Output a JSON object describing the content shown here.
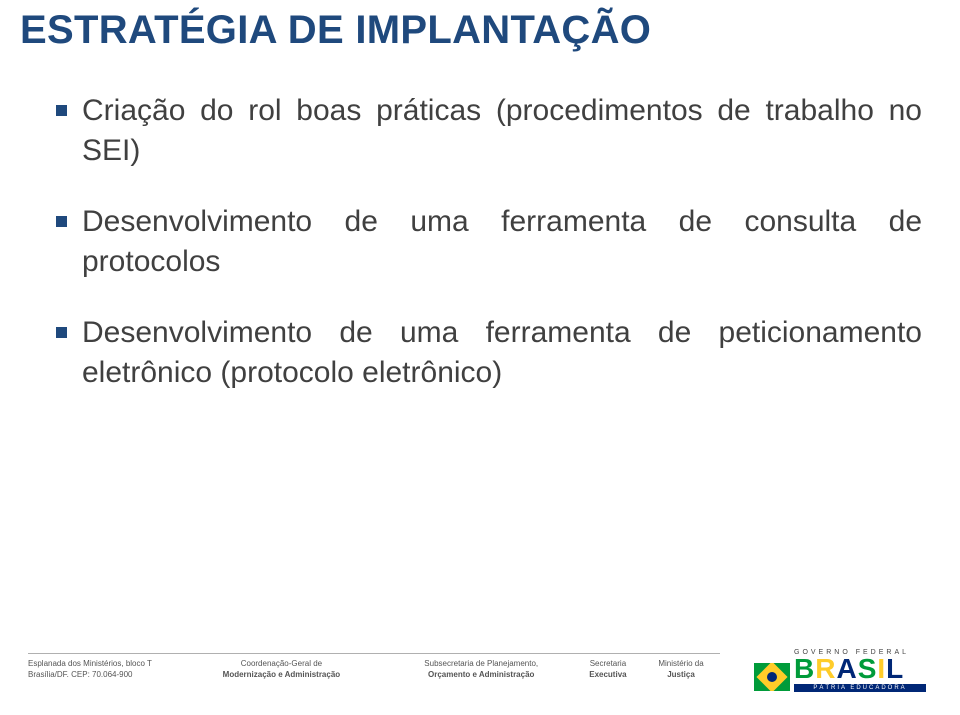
{
  "title": "ESTRATÉGIA DE IMPLANTAÇÃO",
  "bullets": [
    "Criação do rol boas práticas (procedimentos de trabalho no SEI)",
    "Desenvolvimento de uma ferramenta de consulta de protocolos",
    "Desenvolvimento de uma ferramenta de peticionamento eletrônico (protocolo eletrônico)"
  ],
  "footer": {
    "address": {
      "line1": "Esplanada dos Ministérios, bloco T",
      "line2": "Brasília/DF. CEP: 70.064-900"
    },
    "coord": {
      "line1": "Coordenação-Geral de",
      "line2": "Modernização e Administração"
    },
    "sub": {
      "line1": "Subsecretaria de Planejamento,",
      "line2": "Orçamento e Administração"
    },
    "sec": {
      "line1": "Secretaria",
      "line2": "Executiva"
    },
    "min": {
      "line1": "Ministério da",
      "line2": "Justiça"
    },
    "logo": {
      "top": "GOVERNO FEDERAL",
      "word": "BRASIL",
      "bottom": "PÁTRIA EDUCADORA"
    }
  },
  "colors": {
    "title": "#1f497d",
    "text": "#404040",
    "bullet_marker": "#1f497d",
    "flag_green": "#009b3a",
    "flag_yellow": "#ffcc29",
    "flag_blue": "#002776"
  }
}
